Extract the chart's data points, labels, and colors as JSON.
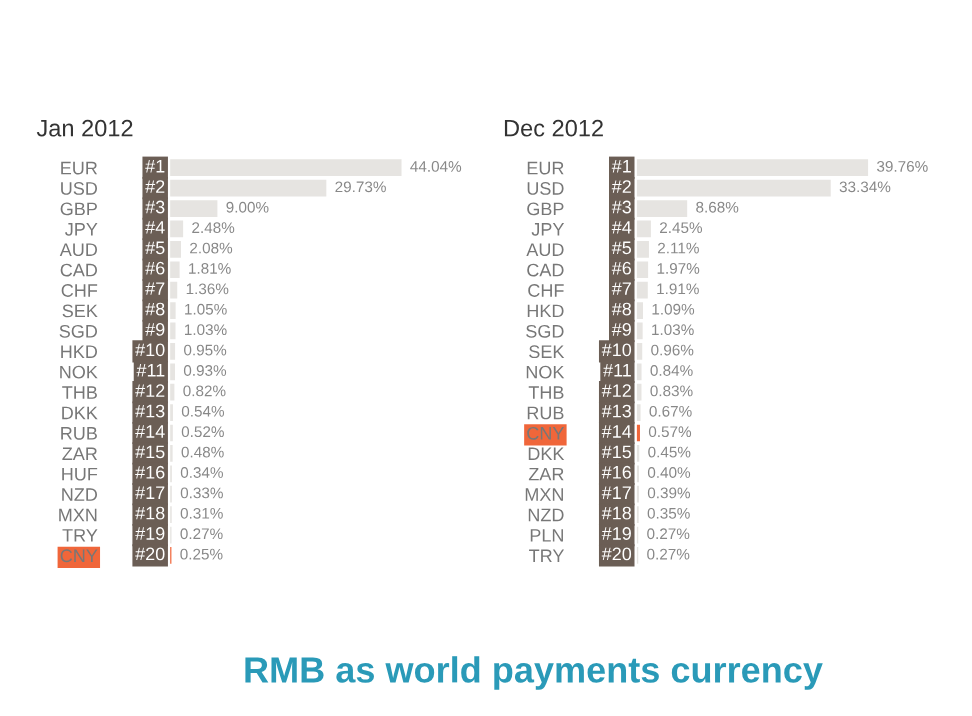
{
  "chart_data": [
    {
      "type": "bar",
      "orientation": "horizontal",
      "title": "Jan 2012",
      "categories": [
        "EUR",
        "USD",
        "GBP",
        "JPY",
        "AUD",
        "CAD",
        "CHF",
        "SEK",
        "SGD",
        "HKD",
        "NOK",
        "THB",
        "DKK",
        "RUB",
        "ZAR",
        "HUF",
        "NZD",
        "MXN",
        "TRY",
        "CNY"
      ],
      "values": [
        44.04,
        29.73,
        9.0,
        2.48,
        2.08,
        1.81,
        1.36,
        1.05,
        1.03,
        0.95,
        0.93,
        0.82,
        0.54,
        0.52,
        0.48,
        0.34,
        0.33,
        0.31,
        0.27,
        0.25
      ],
      "value_labels": [
        "44.04%",
        "29.73%",
        "9.00%",
        "2.48%",
        "2.08%",
        "1.81%",
        "1.36%",
        "1.05%",
        "1.03%",
        "0.95%",
        "0.93%",
        "0.82%",
        "0.54%",
        "0.52%",
        "0.48%",
        "0.34%",
        "0.33%",
        "0.31%",
        "0.27%",
        "0.25%"
      ],
      "colors": [
        "#e6e4e1",
        "#e6e4e1",
        "#e6e4e1",
        "#e6e4e1",
        "#e6e4e1",
        "#e6e4e1",
        "#e6e4e1",
        "#e6e4e1",
        "#e6e4e1",
        "#e6e4e1",
        "#e6e4e1",
        "#e6e4e1",
        "#e6e4e1",
        "#e6e4e1",
        "#e6e4e1",
        "#e6e4e1",
        "#e6e4e1",
        "#e6e4e1",
        "#e6e4e1",
        "#f0663a"
      ],
      "annotations": [
        {
          "text": "#1",
          "y": "EUR"
        },
        {
          "text": "#2",
          "y": "USD"
        },
        {
          "text": "#3",
          "y": "GBP"
        },
        {
          "text": "#4",
          "y": "JPY"
        },
        {
          "text": "#5",
          "y": "AUD"
        },
        {
          "text": "#6",
          "y": "CAD"
        },
        {
          "text": "#7",
          "y": "CHF"
        },
        {
          "text": "#8",
          "y": "SEK"
        },
        {
          "text": "#9",
          "y": "SGD"
        },
        {
          "text": "#10",
          "y": "HKD"
        },
        {
          "text": "#11",
          "y": "NOK"
        },
        {
          "text": "#12",
          "y": "THB"
        },
        {
          "text": "#13",
          "y": "DKK"
        },
        {
          "text": "#14",
          "y": "RUB"
        },
        {
          "text": "#15",
          "y": "ZAR"
        },
        {
          "text": "#16",
          "y": "HUF"
        },
        {
          "text": "#17",
          "y": "NZD"
        },
        {
          "text": "#18",
          "y": "MXN"
        },
        {
          "text": "#19",
          "y": "TRY"
        },
        {
          "text": "#20",
          "y": "CNY"
        },
        "RMB as world payments currency"
      ]
    },
    {
      "type": "bar",
      "orientation": "horizontal",
      "title": "Dec 2012",
      "categories": [
        "EUR",
        "USD",
        "GBP",
        "JPY",
        "AUD",
        "CAD",
        "CHF",
        "HKD",
        "SGD",
        "SEK",
        "NOK",
        "THB",
        "RUB",
        "CNY",
        "DKK",
        "ZAR",
        "MXN",
        "NZD",
        "PLN",
        "TRY"
      ],
      "values": [
        39.76,
        33.34,
        8.68,
        2.45,
        2.11,
        1.97,
        1.91,
        1.09,
        1.03,
        0.96,
        0.84,
        0.83,
        0.67,
        0.57,
        0.45,
        0.4,
        0.39,
        0.35,
        0.27,
        0.27
      ],
      "value_labels": [
        "39.76%",
        "33.34%",
        "8.68%",
        "2.45%",
        "2.11%",
        "1.97%",
        "1.91%",
        "1.09%",
        "1.03%",
        "0.96%",
        "0.84%",
        "0.83%",
        "0.67%",
        "0.57%",
        "0.45%",
        "0.40%",
        "0.39%",
        "0.35%",
        "0.27%",
        "0.27%"
      ],
      "colors": [
        "#e6e4e1",
        "#e6e4e1",
        "#e6e4e1",
        "#e6e4e1",
        "#e6e4e1",
        "#e6e4e1",
        "#e6e4e1",
        "#e6e4e1",
        "#e6e4e1",
        "#e6e4e1",
        "#e6e4e1",
        "#e6e4e1",
        "#e6e4e1",
        "#f0663a",
        "#e6e4e1",
        "#e6e4e1",
        "#e6e4e1",
        "#e6e4e1",
        "#e6e4e1",
        "#e6e4e1"
      ],
      "annotations": [
        {
          "text": "#1",
          "y": "EUR"
        },
        {
          "text": "#2",
          "y": "USD"
        },
        {
          "text": "#3",
          "y": "GBP"
        },
        {
          "text": "#4",
          "y": "JPY"
        },
        {
          "text": "#5",
          "y": "AUD"
        },
        {
          "text": "#6",
          "y": "CAD"
        },
        {
          "text": "#7",
          "y": "CHF"
        },
        {
          "text": "#8",
          "y": "HKD"
        },
        {
          "text": "#9",
          "y": "SGD"
        },
        {
          "text": "#10",
          "y": "SEK"
        },
        {
          "text": "#11",
          "y": "NOK"
        },
        {
          "text": "#12",
          "y": "THB"
        },
        {
          "text": "#13",
          "y": "RUB"
        },
        {
          "text": "#14",
          "y": "CNY"
        },
        {
          "text": "#15",
          "y": "DKK"
        },
        {
          "text": "#16",
          "y": "ZAR"
        },
        {
          "text": "#17",
          "y": "MXN"
        },
        {
          "text": "#18",
          "y": "NZD"
        },
        {
          "text": "#19",
          "y": "PLN"
        },
        {
          "text": "#20",
          "y": "TRY"
        }
      ]
    }
  ]
}
